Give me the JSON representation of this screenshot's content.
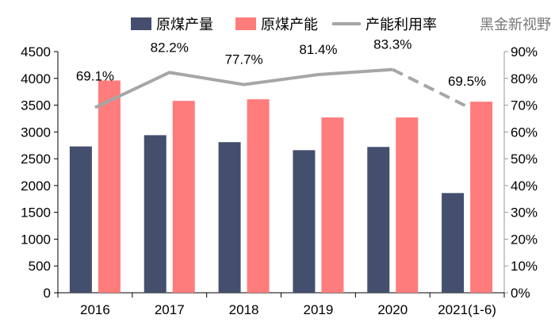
{
  "chart_data": {
    "type": "bar",
    "categories": [
      "2016",
      "2017",
      "2018",
      "2019",
      "2020",
      "2021(1-6)"
    ],
    "series": [
      {
        "name": "原煤产量",
        "kind": "bar",
        "axis": "left",
        "color": "#444F6D",
        "values": [
          2730,
          2940,
          2810,
          2660,
          2720,
          1860
        ]
      },
      {
        "name": "原煤产能",
        "kind": "bar",
        "axis": "left",
        "color": "#FF7C7C",
        "values": [
          3960,
          3580,
          3610,
          3270,
          3270,
          3565
        ]
      },
      {
        "name": "产能利用率",
        "kind": "line",
        "axis": "right",
        "color": "#A6A6A6",
        "values": [
          69.1,
          82.2,
          77.7,
          81.4,
          83.3,
          69.5
        ],
        "labels": [
          "69.1%",
          "82.2%",
          "77.7%",
          "81.4%",
          "83.3%",
          "69.5%"
        ],
        "dashed_last_segment": true
      }
    ],
    "ylim": [
      0,
      4500
    ],
    "yticks": [
      "0",
      "500",
      "1000",
      "1500",
      "2000",
      "2500",
      "3000",
      "3500",
      "4000",
      "4500"
    ],
    "y2lim": [
      0,
      90
    ],
    "y2ticks": [
      "0%",
      "10%",
      "20%",
      "30%",
      "40%",
      "50%",
      "60%",
      "70%",
      "80%",
      "90%"
    ],
    "legend": "top",
    "grid": false
  },
  "watermark": "黑金新视野"
}
